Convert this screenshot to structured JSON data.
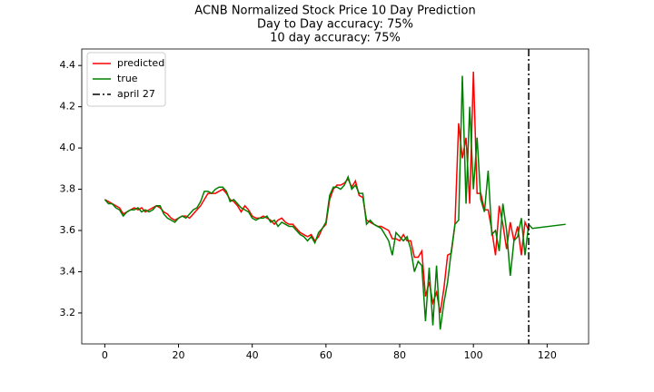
{
  "chart_data": {
    "type": "line",
    "title": "ACNB Normalized Stock Price 10 Day Prediction",
    "subtitle": [
      "Day to Day accuracy: 75%",
      "10 day accuracy: 75%"
    ],
    "xlim": [
      -6.25,
      131.25
    ],
    "ylim": [
      3.05,
      4.48
    ],
    "xticks": [
      0,
      20,
      40,
      60,
      80,
      100,
      120
    ],
    "yticks": [
      3.2,
      3.4,
      3.6,
      3.8,
      {
        "value": 4,
        "label": "4.0"
      },
      4.2,
      4.4
    ],
    "legend": "upper left",
    "series": [
      {
        "name": "predicted",
        "color": "#ff0000",
        "x": [
          0,
          1,
          2,
          3,
          4,
          5,
          6,
          7,
          8,
          9,
          10,
          11,
          12,
          13,
          14,
          15,
          16,
          17,
          18,
          19,
          20,
          21,
          22,
          23,
          24,
          25,
          26,
          27,
          28,
          29,
          30,
          31,
          32,
          33,
          34,
          35,
          36,
          37,
          38,
          39,
          40,
          41,
          42,
          43,
          44,
          45,
          46,
          47,
          48,
          49,
          50,
          51,
          52,
          53,
          54,
          55,
          56,
          57,
          58,
          59,
          60,
          61,
          62,
          63,
          64,
          65,
          66,
          67,
          68,
          69,
          70,
          71,
          72,
          73,
          74,
          75,
          76,
          77,
          78,
          79,
          80,
          81,
          82,
          83,
          84,
          85,
          86,
          87,
          88,
          89,
          90,
          91,
          92,
          93,
          94,
          95,
          96,
          97,
          98,
          99,
          100,
          101,
          102,
          103,
          104,
          105,
          106,
          107,
          108,
          109,
          110,
          111,
          112,
          113,
          114,
          115
        ],
        "values": [
          3.75,
          3.74,
          3.73,
          3.72,
          3.71,
          3.68,
          3.69,
          3.7,
          3.71,
          3.7,
          3.71,
          3.69,
          3.7,
          3.71,
          3.72,
          3.71,
          3.69,
          3.68,
          3.66,
          3.65,
          3.66,
          3.67,
          3.67,
          3.66,
          3.68,
          3.7,
          3.72,
          3.75,
          3.78,
          3.78,
          3.78,
          3.79,
          3.8,
          3.78,
          3.75,
          3.74,
          3.72,
          3.69,
          3.72,
          3.7,
          3.67,
          3.66,
          3.66,
          3.67,
          3.66,
          3.65,
          3.63,
          3.65,
          3.66,
          3.64,
          3.63,
          3.63,
          3.61,
          3.59,
          3.58,
          3.57,
          3.58,
          3.55,
          3.57,
          3.61,
          3.63,
          3.75,
          3.8,
          3.82,
          3.82,
          3.83,
          3.85,
          3.81,
          3.84,
          3.77,
          3.76,
          3.65,
          3.64,
          3.63,
          3.62,
          3.62,
          3.61,
          3.6,
          3.56,
          3.56,
          3.55,
          3.58,
          3.55,
          3.55,
          3.47,
          3.47,
          3.5,
          3.28,
          3.35,
          3.25,
          3.3,
          3.2,
          3.32,
          3.48,
          3.49,
          3.63,
          4.12,
          3.95,
          4.05,
          3.73,
          4.37,
          3.78,
          3.78,
          3.7,
          3.7,
          3.6,
          3.48,
          3.72,
          3.63,
          3.51,
          3.64,
          3.55,
          3.62,
          3.48,
          3.64,
          3.6
        ]
      },
      {
        "name": "true",
        "color": "#008000",
        "x": [
          0,
          1,
          2,
          3,
          4,
          5,
          6,
          7,
          8,
          9,
          10,
          11,
          12,
          13,
          14,
          15,
          16,
          17,
          18,
          19,
          20,
          21,
          22,
          23,
          24,
          25,
          26,
          27,
          28,
          29,
          30,
          31,
          32,
          33,
          34,
          35,
          36,
          37,
          38,
          39,
          40,
          41,
          42,
          43,
          44,
          45,
          46,
          47,
          48,
          49,
          50,
          51,
          52,
          53,
          54,
          55,
          56,
          57,
          58,
          59,
          60,
          61,
          62,
          63,
          64,
          65,
          66,
          67,
          68,
          69,
          70,
          71,
          72,
          73,
          74,
          75,
          76,
          77,
          78,
          79,
          80,
          81,
          82,
          83,
          84,
          85,
          86,
          87,
          88,
          89,
          90,
          91,
          92,
          93,
          94,
          95,
          96,
          97,
          98,
          99,
          100,
          101,
          102,
          103,
          104,
          105,
          106,
          107,
          108,
          109,
          110,
          111,
          112,
          113,
          114,
          115,
          116,
          125
        ],
        "values": [
          3.75,
          3.73,
          3.73,
          3.71,
          3.7,
          3.67,
          3.69,
          3.7,
          3.7,
          3.71,
          3.69,
          3.7,
          3.69,
          3.7,
          3.72,
          3.72,
          3.68,
          3.66,
          3.65,
          3.64,
          3.66,
          3.67,
          3.66,
          3.68,
          3.7,
          3.71,
          3.74,
          3.79,
          3.79,
          3.78,
          3.8,
          3.81,
          3.81,
          3.79,
          3.74,
          3.75,
          3.73,
          3.71,
          3.7,
          3.69,
          3.66,
          3.65,
          3.66,
          3.66,
          3.67,
          3.64,
          3.65,
          3.62,
          3.64,
          3.63,
          3.62,
          3.62,
          3.6,
          3.58,
          3.57,
          3.55,
          3.57,
          3.54,
          3.59,
          3.61,
          3.64,
          3.77,
          3.81,
          3.81,
          3.8,
          3.82,
          3.86,
          3.8,
          3.82,
          3.78,
          3.78,
          3.63,
          3.65,
          3.63,
          3.62,
          3.61,
          3.58,
          3.55,
          3.48,
          3.59,
          3.57,
          3.55,
          3.57,
          3.51,
          3.4,
          3.45,
          3.43,
          3.16,
          3.42,
          3.14,
          3.43,
          3.12,
          3.25,
          3.35,
          3.5,
          3.63,
          3.65,
          4.35,
          3.73,
          4.2,
          3.8,
          4.05,
          3.75,
          3.69,
          3.89,
          3.58,
          3.6,
          3.5,
          3.73,
          3.6,
          3.38,
          3.55,
          3.57,
          3.66,
          3.48,
          3.63,
          3.61,
          3.63
        ]
      }
    ],
    "vline": {
      "x": 115,
      "label": "april 27",
      "color": "#000000"
    }
  }
}
